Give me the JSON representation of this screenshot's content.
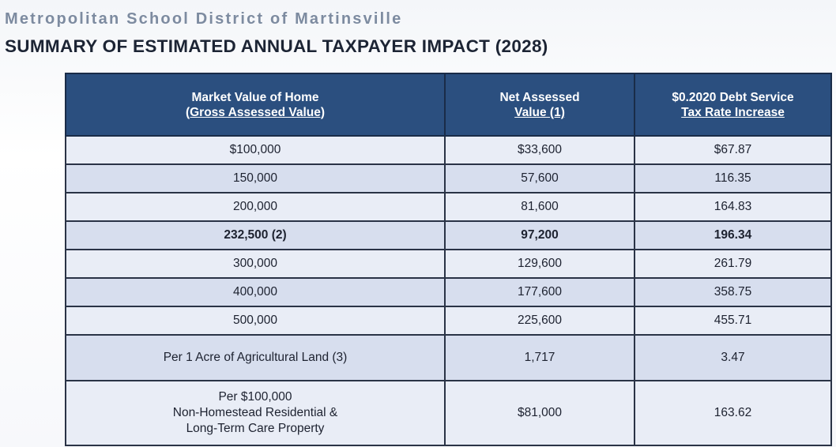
{
  "header": {
    "org": "Metropolitan School District of Martinsville",
    "title": "SUMMARY OF ESTIMATED ANNUAL TAXPAYER IMPACT (2028)"
  },
  "table": {
    "columns": [
      {
        "line1": "Market Value of Home",
        "line2": "(Gross Assessed Value)"
      },
      {
        "line1": "Net Assessed",
        "line2": "Value (1)"
      },
      {
        "line1": "$0.2020 Debt Service",
        "line2": "Tax Rate Increase"
      }
    ],
    "rows": [
      {
        "market": "$100,000",
        "net": "$33,600",
        "tax": "$67.87"
      },
      {
        "market": "150,000",
        "net": "57,600",
        "tax": "116.35"
      },
      {
        "market": "200,000",
        "net": "81,600",
        "tax": "164.83"
      },
      {
        "market": "232,500 (2)",
        "net": "97,200",
        "tax": "196.34"
      },
      {
        "market": "300,000",
        "net": "129,600",
        "tax": "261.79"
      },
      {
        "market": "400,000",
        "net": "177,600",
        "tax": "358.75"
      },
      {
        "market": "500,000",
        "net": "225,600",
        "tax": "455.71"
      },
      {
        "market": "Per 1 Acre of Agricultural Land (3)",
        "net": "1,717",
        "tax": "3.47"
      },
      {
        "market_lines": [
          "Per $100,000",
          "Non-Homestead Residential &",
          "Long-Term Care Property"
        ],
        "net": "$81,000",
        "tax": "163.62"
      }
    ]
  }
}
